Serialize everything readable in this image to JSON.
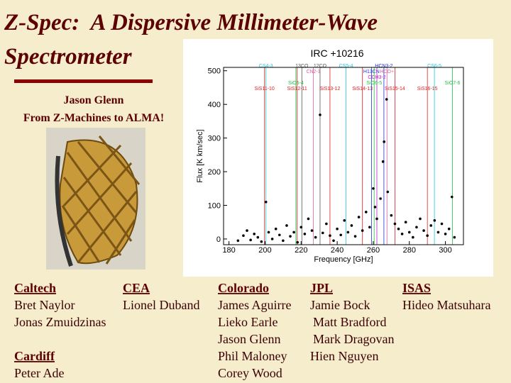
{
  "header": {
    "title_lines": [
      "Z-Spec:  A Dispersive Millimeter-Wave",
      "Spectrometer"
    ],
    "author": "Jason Glenn",
    "subtitle": "From Z-Machines to ALMA!"
  },
  "chart_data": {
    "type": "scatter",
    "title": "IRC +10216",
    "x_label": "Frequency [GHz]",
    "y_label": "Flux [K km/sec]",
    "xlim": [
      177,
      310
    ],
    "ylim": [
      -17,
      510
    ],
    "xticks": [
      180,
      200,
      220,
      240,
      260,
      280,
      300
    ],
    "yticks": [
      0,
      100,
      200,
      300,
      400,
      500
    ],
    "series": [
      {
        "color": "#000000",
        "x": [
          185,
          188,
          190,
          192,
          194,
          196,
          198,
          200.5,
          202,
          204,
          206,
          208,
          210,
          212,
          214,
          216,
          218,
          220,
          222,
          224,
          226,
          228,
          230.5,
          232,
          234,
          236,
          238,
          240,
          242,
          244,
          246,
          248,
          250,
          252,
          254,
          256,
          258,
          260,
          261,
          262,
          264,
          265.4,
          266,
          267.4,
          268,
          270,
          272,
          274,
          276,
          278,
          280,
          282,
          284,
          286,
          288,
          290,
          292,
          294,
          296,
          298,
          300,
          302,
          303.6,
          305
        ],
        "values": [
          -5,
          10,
          25,
          -3,
          15,
          5,
          -8,
          110,
          20,
          0,
          30,
          12,
          -5,
          40,
          8,
          20,
          -10,
          35,
          15,
          60,
          25,
          5,
          369,
          18,
          45,
          10,
          -5,
          30,
          12,
          55,
          20,
          40,
          8,
          65,
          25,
          80,
          35,
          150,
          95,
          60,
          120,
          230,
          289,
          415,
          140,
          70,
          45,
          30,
          15,
          50,
          20,
          5,
          35,
          60,
          25,
          10,
          40,
          55,
          20,
          45,
          15,
          30,
          125,
          5
        ]
      }
    ],
    "annotations": [
      {
        "text": "CS4-3",
        "x": 200.5,
        "color": "#22c8e0"
      },
      {
        "text": "13CO",
        "x": 220.4,
        "color": "#555555"
      },
      {
        "text": "12CO",
        "x": 230.5,
        "color": "#555555"
      },
      {
        "text": "CN2-1",
        "x": 226.8,
        "color": "#e060a0"
      },
      {
        "text": "SiO5-4",
        "x": 217.1,
        "color": "#20c040"
      },
      {
        "text": "SiS11-10",
        "x": 199.7,
        "color": "#e02020"
      },
      {
        "text": "SiS12-11",
        "x": 217.8,
        "color": "#e02020"
      },
      {
        "text": "SiS13-12",
        "x": 236,
        "color": "#e02020"
      },
      {
        "text": "SiS14-13",
        "x": 254,
        "color": "#e02020"
      },
      {
        "text": "CS5-4",
        "x": 244.9,
        "color": "#22c8e0"
      },
      {
        "text": "HCN3-2",
        "x": 265.9,
        "color": "#2030e0"
      },
      {
        "text": "H13CN",
        "x": 259,
        "color": "#2030e0"
      },
      {
        "text": "CCH3-2",
        "x": 262,
        "color": "#c020c0"
      },
      {
        "text": "SiO6-5",
        "x": 260.5,
        "color": "#20c040"
      },
      {
        "text": "HCO+",
        "x": 267.6,
        "color": "#e060a0"
      },
      {
        "text": "SiS15-14",
        "x": 272,
        "color": "#e02020"
      },
      {
        "text": "SiS16-15",
        "x": 290,
        "color": "#e02020"
      },
      {
        "text": "CS6-5",
        "x": 293.9,
        "color": "#22c8e0"
      },
      {
        "text": "SiO7-6",
        "x": 303.9,
        "color": "#20c040"
      }
    ]
  },
  "groups": [
    {
      "name": "Caltech",
      "members": [
        "Bret Naylor",
        "Jonas Zmuidzinas"
      ]
    },
    {
      "name": "CEA",
      "members": [
        "Lionel Duband"
      ]
    },
    {
      "name": "Colorado",
      "members": [
        "James Aguirre",
        "Lieko Earle",
        "Jason Glenn",
        "Phil Maloney",
        "Corey Wood"
      ]
    },
    {
      "name": "JPL",
      "members": [
        "Jamie Bock",
        "Matt Bradford",
        "Mark Dragovan",
        "Hien Nguyen"
      ]
    },
    {
      "name": "ISAS",
      "members": [
        "Hideo Matsuhara"
      ]
    },
    {
      "name": "Cardiff",
      "members": [
        "Peter Ade"
      ]
    }
  ]
}
